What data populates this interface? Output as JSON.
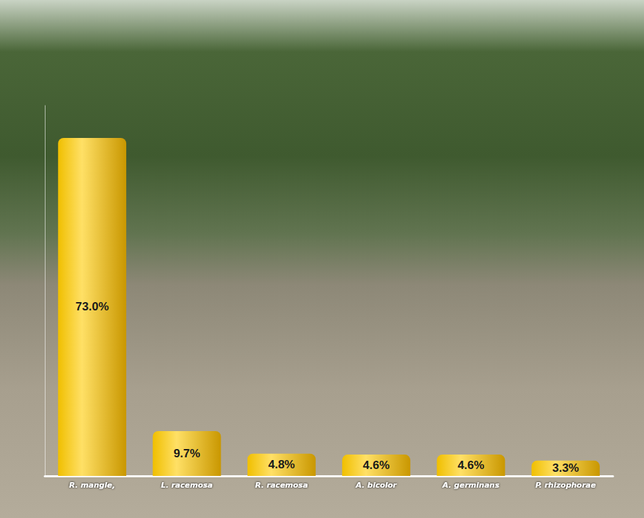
{
  "chart_data": {
    "type": "bar",
    "categories": [
      "R. mangle,",
      "L. racemosa",
      "R. racemosa",
      "A. bicolor",
      "A. germinans",
      "P. rhizophorae"
    ],
    "values": [
      73.0,
      9.7,
      4.8,
      4.6,
      4.6,
      3.3
    ],
    "value_labels": [
      "73.0%",
      "9.7%",
      "4.8%",
      "4.6%",
      "4.6%",
      "3.3%"
    ],
    "color": "#f0bf00",
    "ylim": [
      0,
      80
    ],
    "data_labels": true,
    "tick_labels": "x",
    "grid": false
  }
}
